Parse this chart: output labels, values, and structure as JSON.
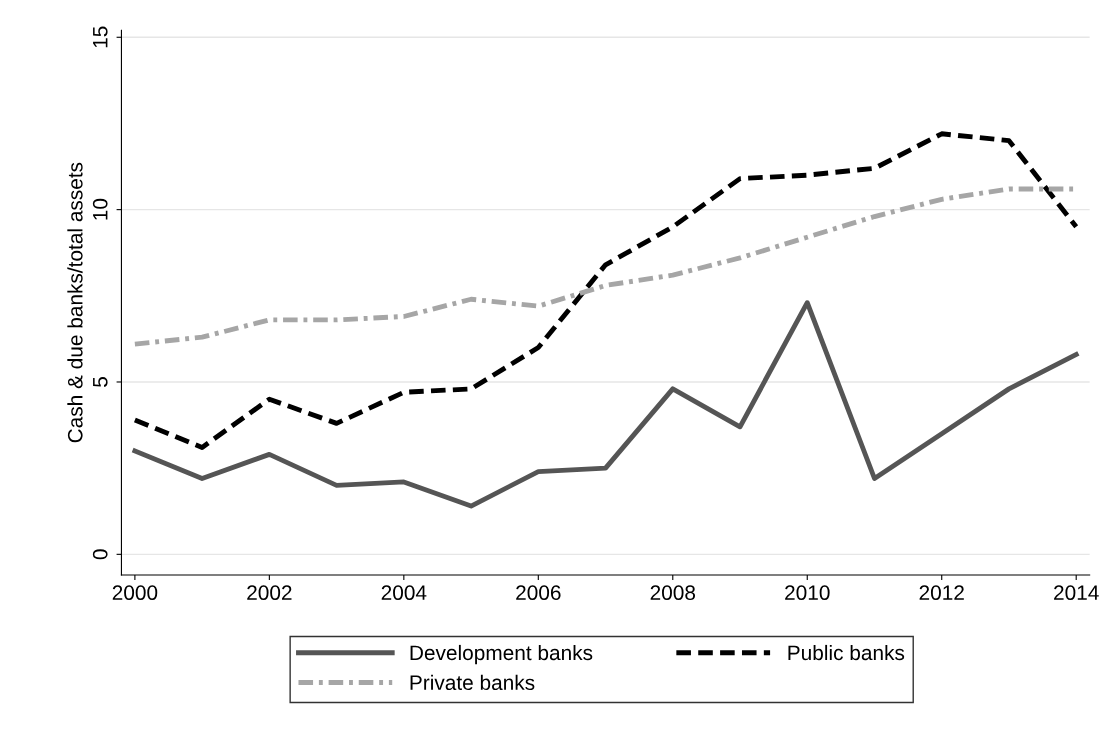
{
  "chart_data": {
    "type": "line",
    "ylabel": "Cash & due banks/total assets",
    "x": [
      2000,
      2001,
      2002,
      2003,
      2004,
      2005,
      2006,
      2007,
      2008,
      2009,
      2010,
      2011,
      2012,
      2013,
      2014
    ],
    "series": [
      {
        "name": "Development banks",
        "color": "#555555",
        "line_style": "solid",
        "values": [
          3.0,
          2.2,
          2.9,
          2.0,
          2.1,
          1.4,
          2.4,
          2.5,
          4.8,
          3.7,
          7.3,
          2.2,
          3.5,
          4.8,
          5.8
        ]
      },
      {
        "name": "Public banks",
        "color": "#000000",
        "line_style": "dashed",
        "values": [
          3.9,
          3.1,
          4.5,
          3.8,
          4.7,
          4.8,
          6.0,
          8.4,
          9.5,
          10.9,
          11.0,
          11.2,
          12.2,
          12.0,
          9.5
        ]
      },
      {
        "name": "Private banks",
        "color": "#a6a6a6",
        "line_style": "dashdot",
        "values": [
          6.1,
          6.3,
          6.8,
          6.8,
          6.9,
          7.4,
          7.2,
          7.8,
          8.1,
          8.6,
          9.2,
          9.8,
          10.3,
          10.6,
          10.6
        ]
      }
    ],
    "xlim": [
      1999.8,
      2014.2
    ],
    "xticks": [
      2000,
      2002,
      2004,
      2006,
      2008,
      2010,
      2012,
      2014
    ],
    "ylim": [
      -0.6,
      15.2
    ],
    "yticks": [
      0,
      5,
      10,
      15
    ],
    "grid": "y",
    "legend": "bottom"
  }
}
